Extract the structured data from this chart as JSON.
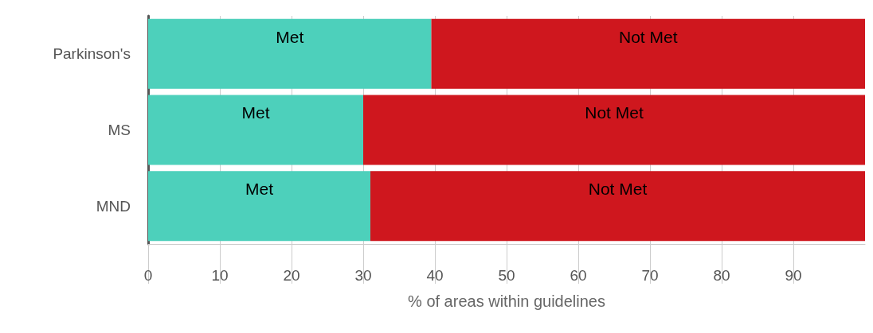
{
  "chart_data": {
    "type": "bar",
    "orientation": "horizontal",
    "stacked": true,
    "xlabel": "% of areas within guidelines",
    "categories": [
      "Parkinson's",
      "MS",
      "MND"
    ],
    "series": [
      {
        "name": "Met",
        "color": "#4dd0bb",
        "values": [
          39.5,
          30,
          31
        ]
      },
      {
        "name": "Not Met",
        "color": "#cf171e",
        "values": [
          60.5,
          70,
          69
        ]
      }
    ],
    "xlim": [
      0,
      100
    ],
    "xticks": [
      0,
      10,
      20,
      30,
      40,
      50,
      60,
      70,
      80,
      90
    ],
    "grid": "x",
    "legend": false
  }
}
